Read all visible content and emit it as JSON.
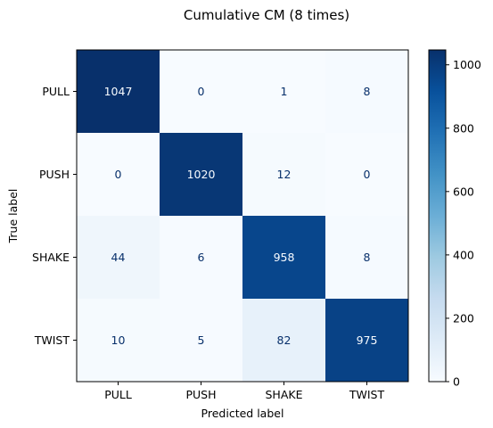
{
  "chart_data": {
    "type": "heatmap",
    "title": "Cumulative CM (8 times)",
    "xlabel": "Predicted label",
    "ylabel": "True label",
    "x_categories": [
      "PULL",
      "PUSH",
      "SHAKE",
      "TWIST"
    ],
    "y_categories": [
      "PULL",
      "PUSH",
      "SHAKE",
      "TWIST"
    ],
    "values": [
      [
        1047,
        0,
        1,
        8
      ],
      [
        0,
        1020,
        12,
        0
      ],
      [
        44,
        6,
        958,
        8
      ],
      [
        10,
        5,
        82,
        975
      ]
    ],
    "colormap": "Blues",
    "vmin": 0,
    "vmax": 1047,
    "colorbar_ticks": [
      0,
      200,
      400,
      600,
      800,
      1000
    ],
    "colorbar_tick_labels": [
      "0",
      "200",
      "400",
      "600",
      "800",
      "1000"
    ],
    "colors": {
      "low": "#f7fbff",
      "high": "#08306b",
      "text_dark": "#08306b",
      "text_light": "#f7fbff"
    }
  }
}
